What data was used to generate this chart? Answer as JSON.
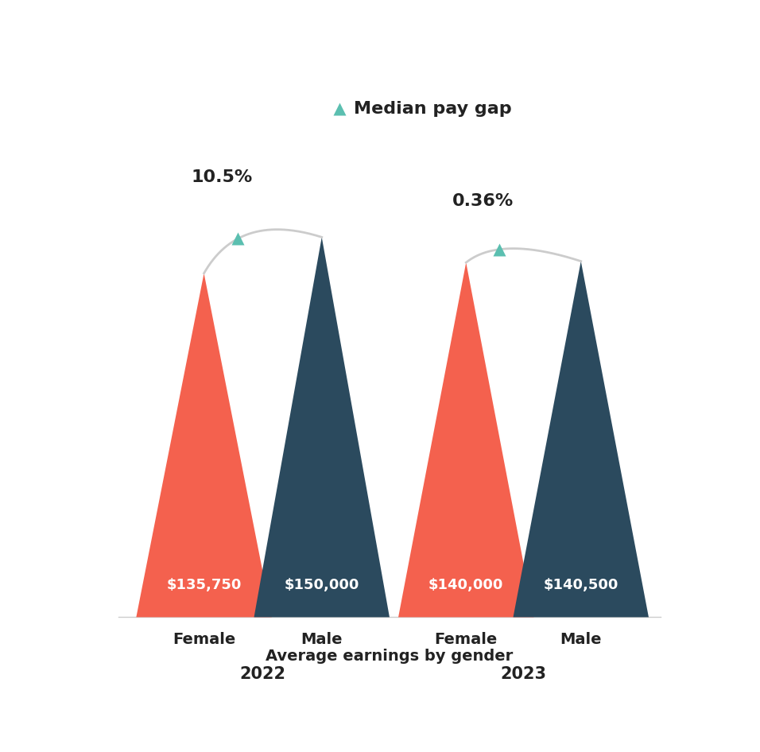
{
  "title": "Median pay gap",
  "xlabel": "Average earnings by gender",
  "background_color": "#ffffff",
  "title_color": "#222222",
  "groups": [
    {
      "year": "2022",
      "gap_label": "10.5%",
      "female_value": "$135,750",
      "male_value": "$150,000",
      "female_amount": 135750,
      "male_amount": 150000
    },
    {
      "year": "2023",
      "gap_label": "0.36%",
      "female_value": "$140,000",
      "male_value": "$140,500",
      "female_amount": 140000,
      "male_amount": 140500
    }
  ],
  "female_color_main": "#f4614e",
  "female_color_shadow": "#c8503d",
  "male_color_main": "#2b4a5e",
  "male_color_shadow": "#3d6680",
  "connector_color": "#cccccc",
  "triangle_marker_color": "#5bbfb0",
  "max_value": 160000,
  "label_color": "#222222",
  "value_text_color": "#ffffff",
  "year_label_color": "#222222"
}
